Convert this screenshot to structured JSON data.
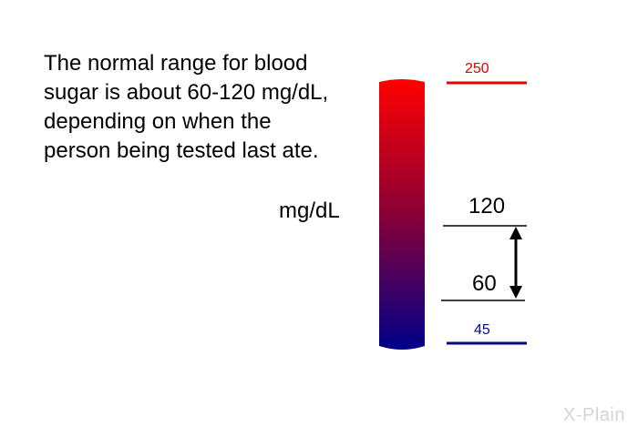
{
  "caption": "The normal range for blood sugar is about 60-120 mg/dL, depending on when the person being tested last ate.",
  "unit_label": "mg/dL",
  "markers": [
    {
      "value": 250,
      "label": "250",
      "color": "#e60000",
      "style": "thick"
    },
    {
      "value": 120,
      "label": "120",
      "color": "#000000",
      "style": "thin"
    },
    {
      "value": 60,
      "label": "60",
      "color": "#000000",
      "style": "thin"
    },
    {
      "value": 45,
      "label": "45",
      "color": "#0a0a7a",
      "style": "thick"
    }
  ],
  "normal_range": {
    "low": 60,
    "high": 120
  },
  "gauge_colors": {
    "top": "#ff0000",
    "middle": "#8a0036",
    "bottom": "#00008a"
  },
  "logo": "X-Plain"
}
